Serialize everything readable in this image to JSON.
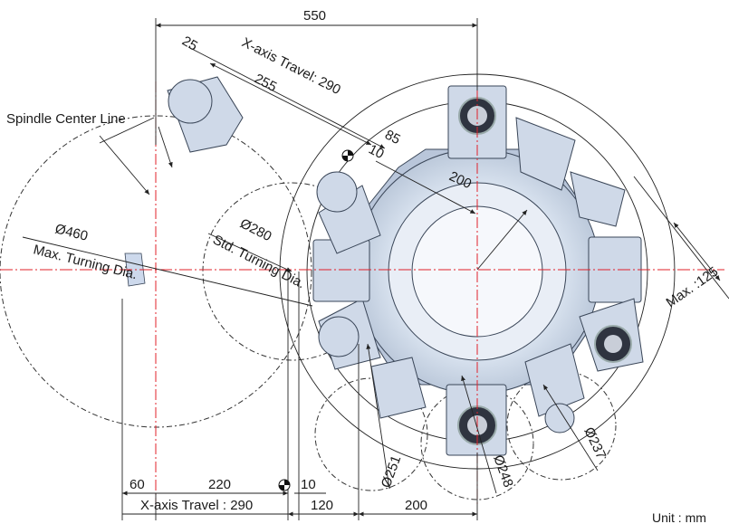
{
  "dimensions": {
    "top_width": "550",
    "tool_offset": "25",
    "x_travel_top": "X-axis Travel: 290",
    "tool_length": "255",
    "offset_85": "85",
    "offset_10_top": "10",
    "radius_200": "200",
    "dia_280": "Ø280",
    "std_turning": "Std. Turning Dia.",
    "dia_460": "Ø460",
    "max_turning": "Max. Turning Dia.",
    "max_125": "Max. :125",
    "dia_251": "Ø251",
    "dia_248": "Ø248",
    "dia_237": "Ø237",
    "bottom_60": "60",
    "bottom_220": "220",
    "bottom_10": "10",
    "bottom_xtravel": "X-axis Travel : 290",
    "bottom_120": "120",
    "bottom_200": "200"
  },
  "labels": {
    "spindle_center_line": "Spindle Center Line",
    "unit": "Unit : mm"
  }
}
